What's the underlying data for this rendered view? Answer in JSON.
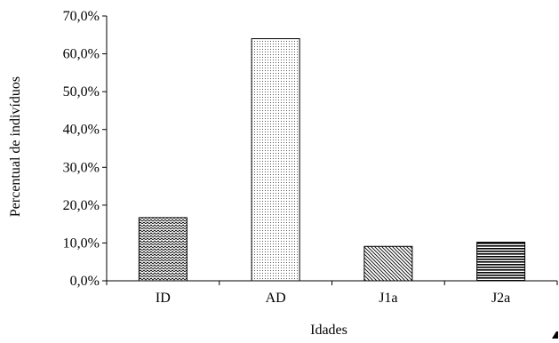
{
  "chart_data": {
    "type": "bar",
    "title": "",
    "xlabel": "Idades",
    "ylabel": "Percentual de indivíduos",
    "categories": [
      "ID",
      "AD",
      "J1a",
      "J2a"
    ],
    "values": [
      16.7,
      64.0,
      9.1,
      10.2
    ],
    "ylim": [
      0,
      70
    ],
    "yticks": [
      0,
      10,
      20,
      30,
      40,
      50,
      60,
      70
    ],
    "ytick_labels": [
      "0,0%",
      "10,0%",
      "20,0%",
      "30,0%",
      "40,0%",
      "50,0%",
      "60,0%",
      "70,0%"
    ],
    "grid": false,
    "legend": "none",
    "bar_patterns": [
      "wave",
      "dots",
      "diagonal",
      "horizontal"
    ],
    "colors": {
      "axis": "#000000",
      "bar_fill": "#ffffff",
      "pattern": "#000000"
    }
  }
}
